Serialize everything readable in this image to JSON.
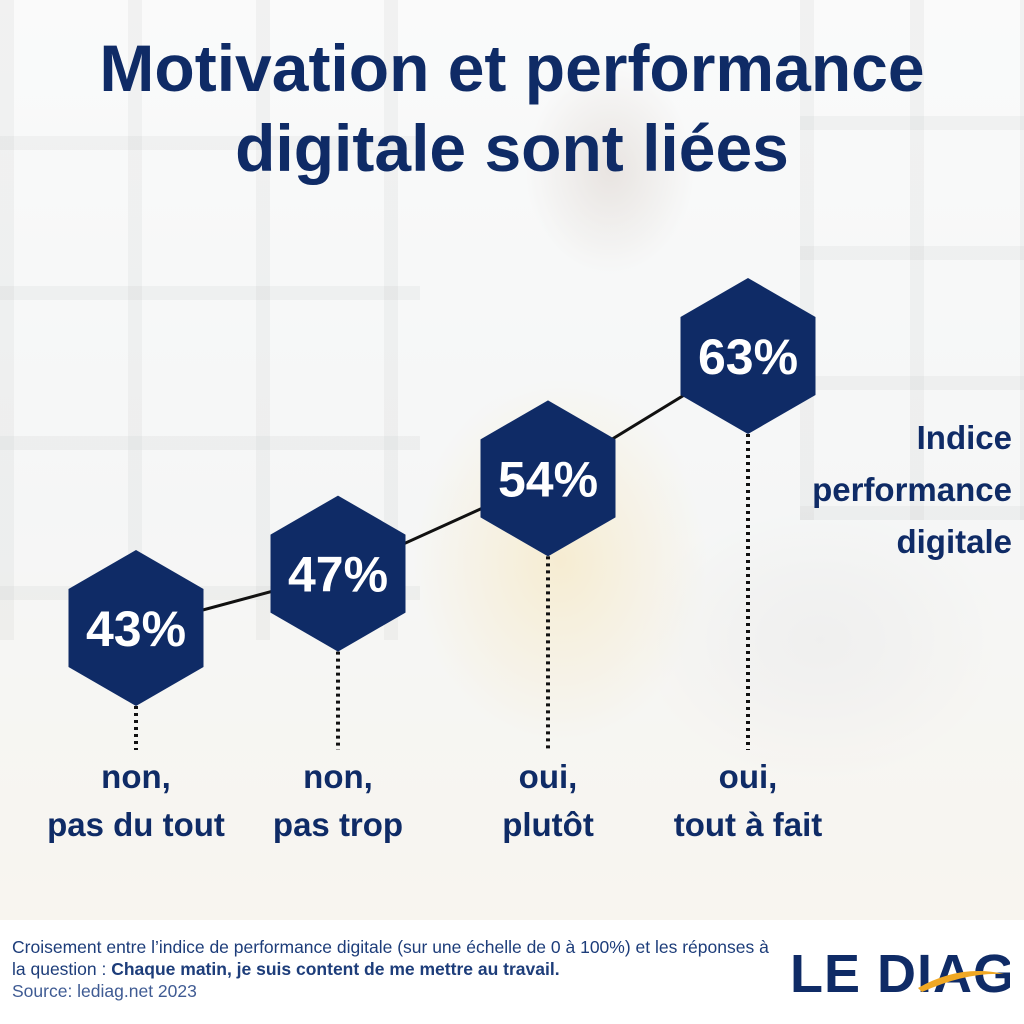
{
  "title": "Motivation et performance digitale sont liées",
  "series_label": "Indice performance digitale",
  "footer": {
    "caption_intro": "Croisement entre l’indice de performance digitale (sur une échelle de 0 à 100%) et les réponses à la question : ",
    "caption_question": "Chaque matin, je suis content de me mettre au travail.",
    "source": "Source: lediag.net 2023",
    "logo_text": "LE DIAG"
  },
  "colors": {
    "navy": "#0f2b66",
    "logo_accent": "#f0a824",
    "text_blue": "#1d3d7a"
  },
  "chart_data": {
    "type": "line",
    "categories": [
      [
        "non,",
        "pas du tout"
      ],
      [
        "non,",
        "pas trop"
      ],
      [
        "oui,",
        "plutôt"
      ],
      [
        "oui,",
        "tout à fait"
      ]
    ],
    "values": [
      43,
      47,
      54,
      63
    ],
    "value_labels": [
      "43%",
      "47%",
      "54%",
      "63%"
    ],
    "marker": "hexagon",
    "ylim": [
      0,
      100
    ]
  }
}
